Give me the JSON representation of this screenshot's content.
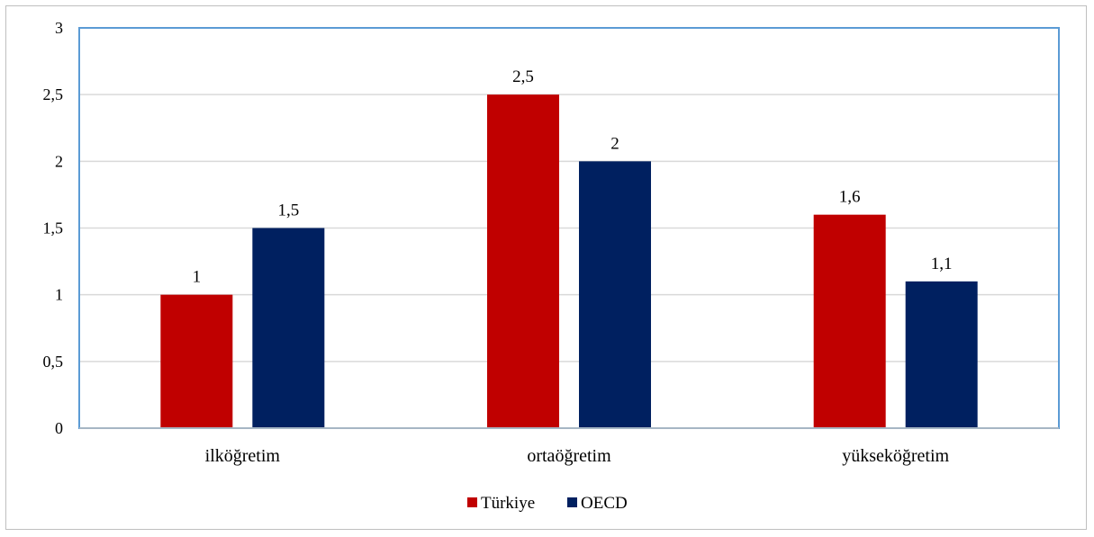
{
  "chart_data": {
    "type": "bar",
    "categories": [
      "ilköğretim",
      "ortaöğretim",
      "yükseköğretim"
    ],
    "series": [
      {
        "name": "Türkiye",
        "color": "#c00000",
        "values": [
          1,
          2.5,
          1.6
        ],
        "labels": [
          "1",
          "2,5",
          "1,6"
        ]
      },
      {
        "name": "OECD",
        "color": "#002060",
        "values": [
          1.5,
          2,
          1.1
        ],
        "labels": [
          "1,5",
          "2",
          "1,1"
        ]
      }
    ],
    "yticks": [
      0,
      0.5,
      1,
      1.5,
      2,
      2.5,
      3
    ],
    "ytick_labels": [
      "0",
      "0,5",
      "1",
      "1,5",
      "2",
      "2,5",
      "3"
    ],
    "ylim": [
      0,
      3
    ],
    "grid": true,
    "legend_position": "bottom",
    "plot_border_color": "#5b9bd5"
  }
}
